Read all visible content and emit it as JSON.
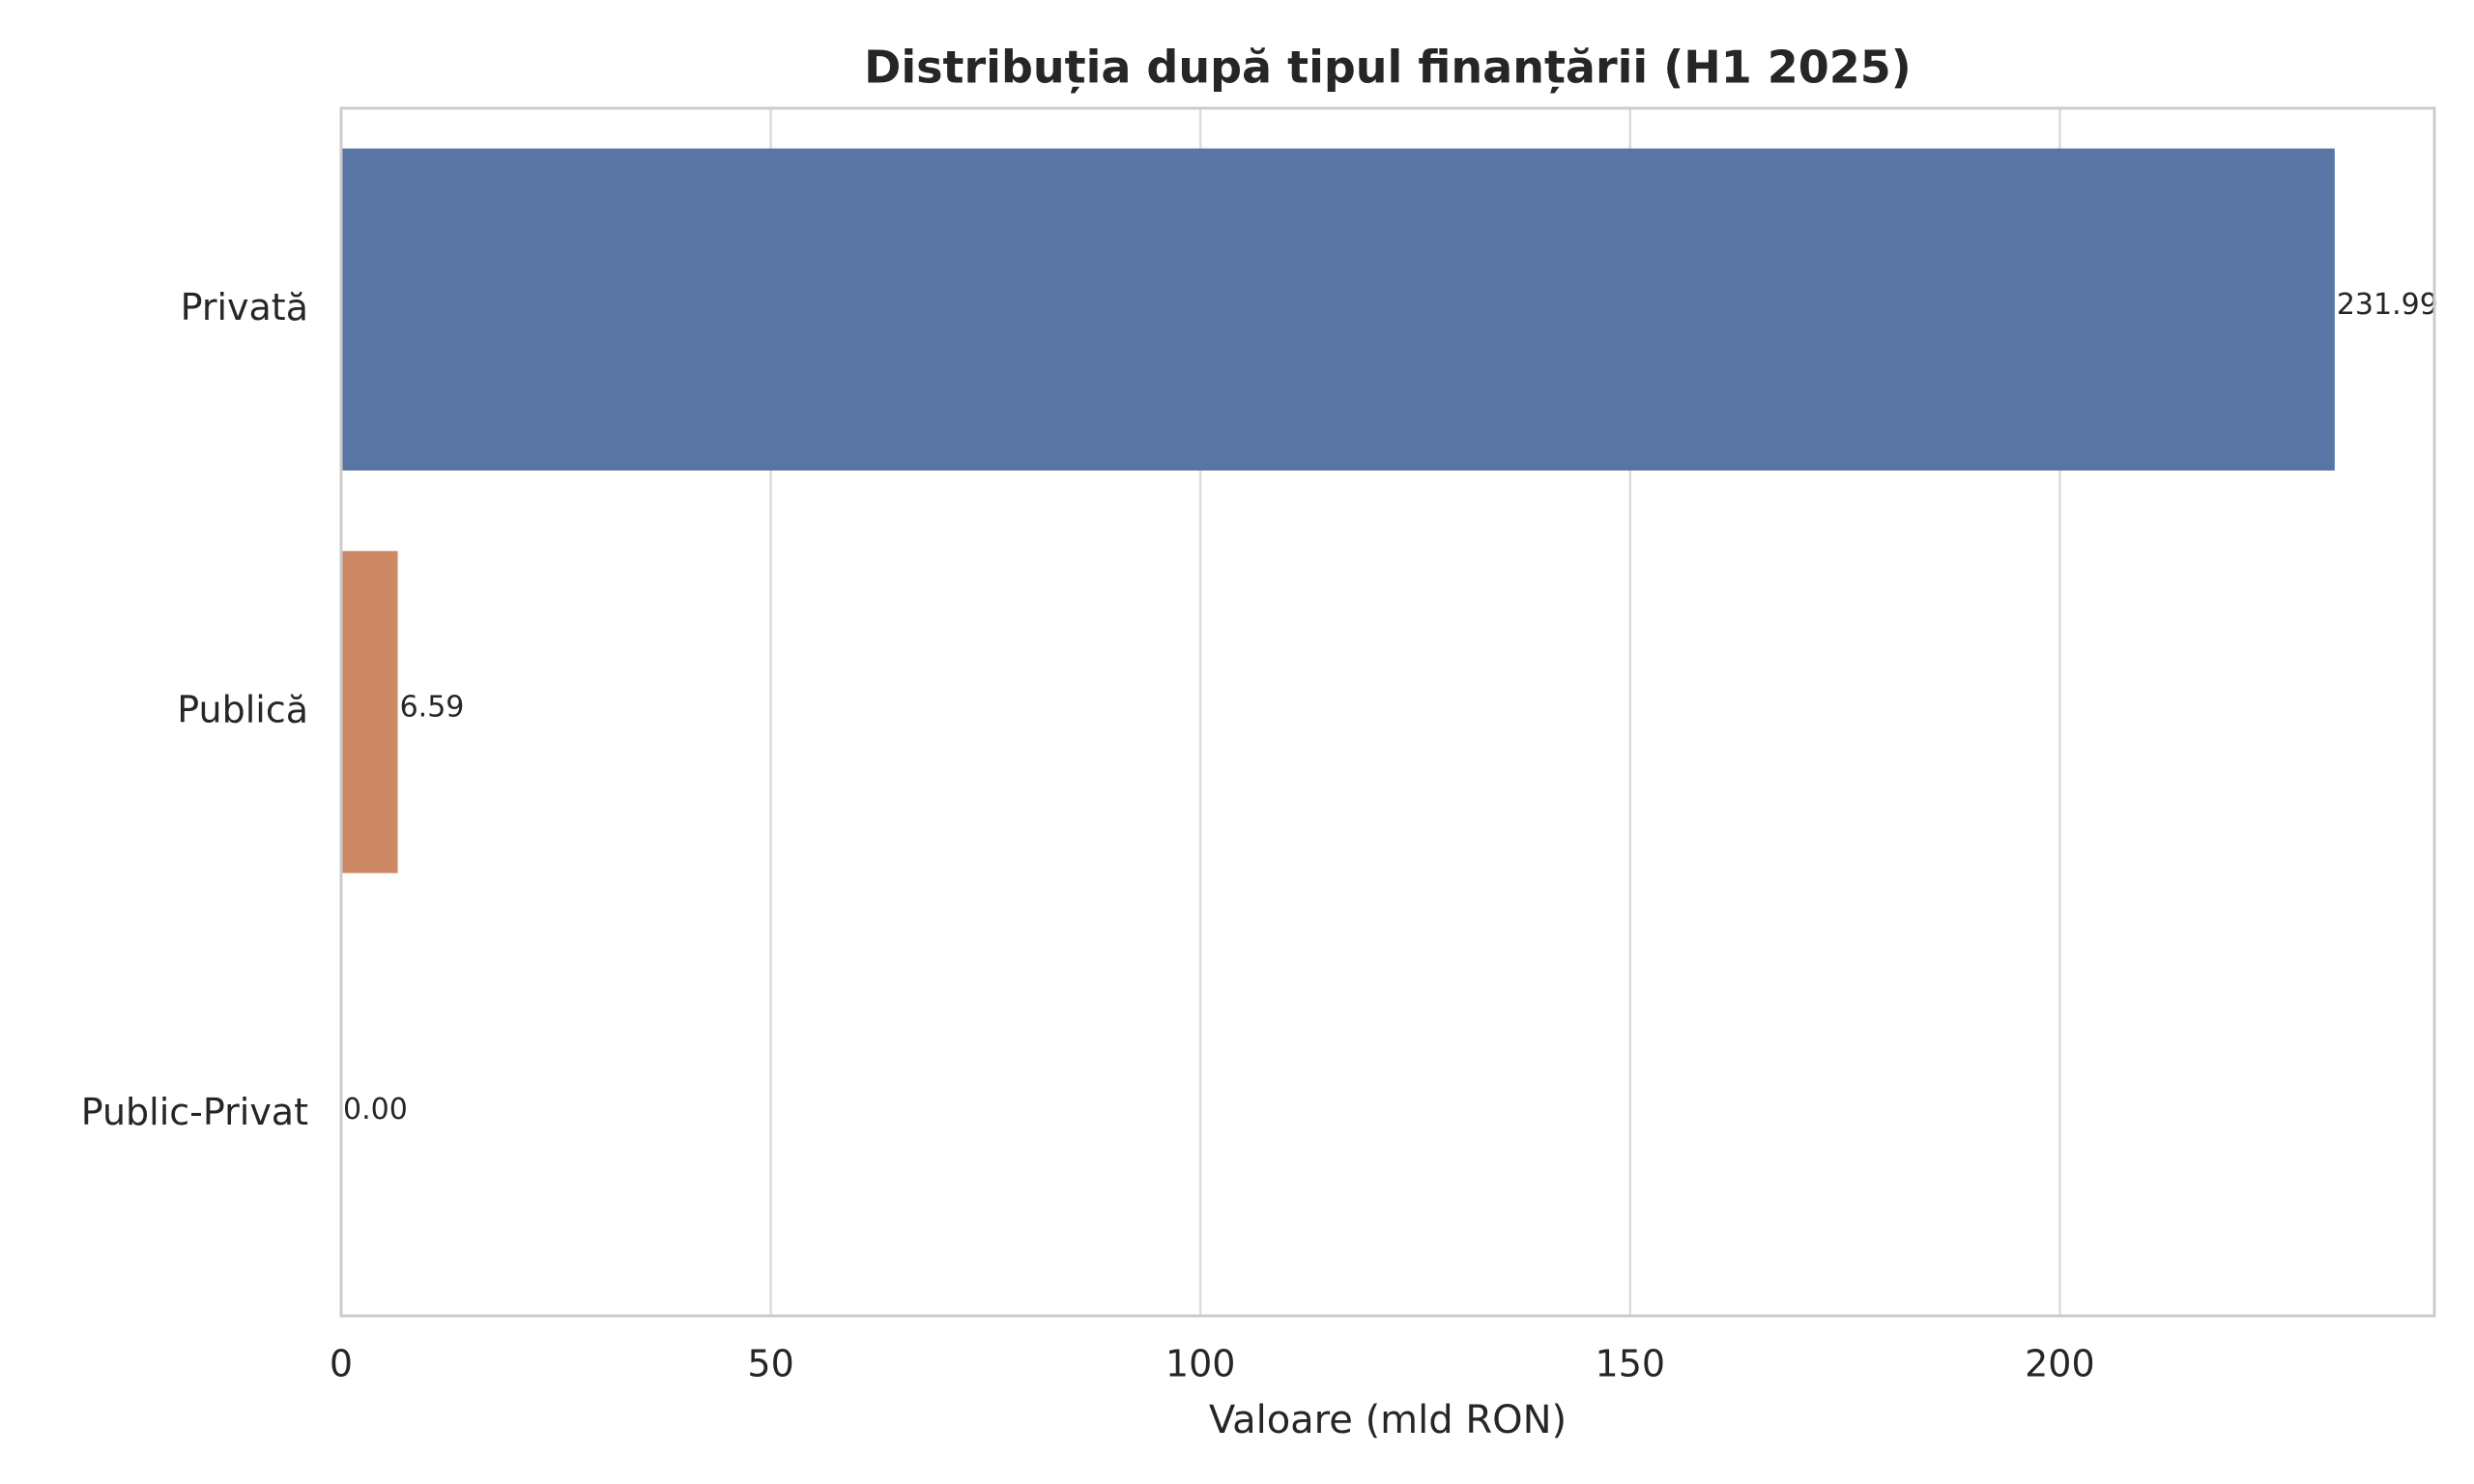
{
  "chart_data": {
    "type": "barh",
    "title": "Distribuția după tipul finanțării (H1 2025)",
    "xlabel": "Valoare (mld RON)",
    "categories": [
      "Privată",
      "Publică",
      "Public-Privat"
    ],
    "values": [
      231.99,
      6.59,
      0
    ],
    "value_labels": [
      "231.99",
      "6.59",
      "0.00"
    ],
    "colors": [
      "#5875a4",
      "#cc8963",
      "#5f9e6e"
    ],
    "xlim": [
      0,
      243.59
    ],
    "xticks": [
      0,
      50,
      100,
      150,
      200
    ],
    "grid": true
  }
}
